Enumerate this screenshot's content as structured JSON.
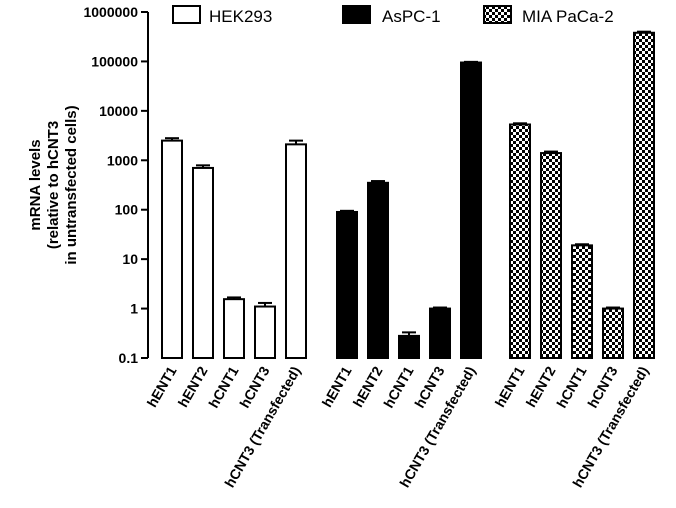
{
  "chart_data": {
    "type": "bar",
    "scale": "log",
    "ylim": [
      0.1,
      1000000
    ],
    "ylabel_lines": [
      "mRNA levels",
      "(relative to hCNT3",
      "in untransfected cells)"
    ],
    "yticks": [
      "0.1",
      "1",
      "10",
      "100",
      "1000",
      "10000",
      "100000",
      "1000000"
    ],
    "ytick_values": [
      0.1,
      1,
      10,
      100,
      1000,
      10000,
      100000,
      1000000
    ],
    "categories": [
      "hENT1",
      "hENT2",
      "hCNT1",
      "hCNT3",
      "hCNT3 (Transfected)"
    ],
    "legend_position": "top",
    "series": [
      {
        "name": "HEK293",
        "fill": "white",
        "values": [
          2500,
          700,
          1.55,
          1.1,
          2100
        ],
        "errors": [
          2800,
          790,
          1.68,
          1.3,
          2500
        ]
      },
      {
        "name": "AsPC-1",
        "fill": "black",
        "values": [
          90,
          350,
          0.28,
          1.0,
          95000
        ],
        "errors": [
          95,
          380,
          0.33,
          1.05,
          98000
        ]
      },
      {
        "name": "MIA PaCa-2",
        "fill": "checker",
        "values": [
          5300,
          1400,
          19,
          1.0,
          380000
        ],
        "errors": [
          5600,
          1500,
          20,
          1.05,
          400000
        ]
      }
    ]
  }
}
